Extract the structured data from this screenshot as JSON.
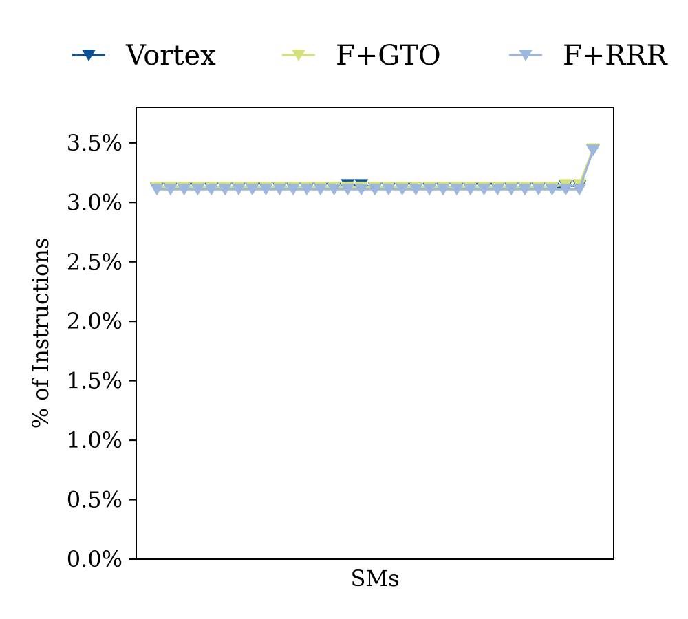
{
  "chart_data": {
    "type": "line",
    "xlabel": "SMs",
    "ylabel": "% of Instructions",
    "ylim": [
      0,
      3.8
    ],
    "yticks": [
      {
        "value": 0.0,
        "label": "0.0%"
      },
      {
        "value": 0.5,
        "label": "0.5%"
      },
      {
        "value": 1.0,
        "label": "1.0%"
      },
      {
        "value": 1.5,
        "label": "1.5%"
      },
      {
        "value": 2.0,
        "label": "2.0%"
      },
      {
        "value": 2.5,
        "label": "2.5%"
      },
      {
        "value": 3.0,
        "label": "3.0%"
      },
      {
        "value": 3.5,
        "label": "3.5%"
      }
    ],
    "x": [
      1,
      2,
      3,
      4,
      5,
      6,
      7,
      8,
      9,
      10,
      11,
      12,
      13,
      14,
      15,
      16,
      17,
      18,
      19,
      20,
      21,
      22,
      23,
      24,
      25,
      26,
      27,
      28,
      29,
      30,
      31,
      32,
      33
    ],
    "series": [
      {
        "name": "Vortex",
        "color": "#0b4f96",
        "values": [
          3.12,
          3.12,
          3.12,
          3.12,
          3.12,
          3.12,
          3.12,
          3.12,
          3.12,
          3.12,
          3.12,
          3.12,
          3.12,
          3.12,
          3.15,
          3.15,
          3.12,
          3.12,
          3.12,
          3.12,
          3.12,
          3.12,
          3.12,
          3.12,
          3.12,
          3.12,
          3.12,
          3.12,
          3.12,
          3.12,
          3.14,
          3.14,
          3.44
        ]
      },
      {
        "name": "F+GTO",
        "color": "#d4e07a",
        "values": [
          3.13,
          3.13,
          3.13,
          3.13,
          3.13,
          3.13,
          3.13,
          3.13,
          3.13,
          3.13,
          3.13,
          3.13,
          3.13,
          3.13,
          3.13,
          3.13,
          3.13,
          3.13,
          3.13,
          3.13,
          3.13,
          3.13,
          3.13,
          3.13,
          3.13,
          3.13,
          3.13,
          3.13,
          3.13,
          3.13,
          3.15,
          3.15,
          3.45
        ]
      },
      {
        "name": "F+RRR",
        "color": "#9db7dd",
        "values": [
          3.11,
          3.11,
          3.11,
          3.11,
          3.11,
          3.11,
          3.11,
          3.11,
          3.11,
          3.11,
          3.11,
          3.11,
          3.11,
          3.11,
          3.11,
          3.11,
          3.11,
          3.11,
          3.11,
          3.11,
          3.11,
          3.11,
          3.11,
          3.11,
          3.11,
          3.11,
          3.11,
          3.11,
          3.11,
          3.11,
          3.11,
          3.11,
          3.44
        ]
      }
    ],
    "legend_position": "top",
    "grid": false
  }
}
